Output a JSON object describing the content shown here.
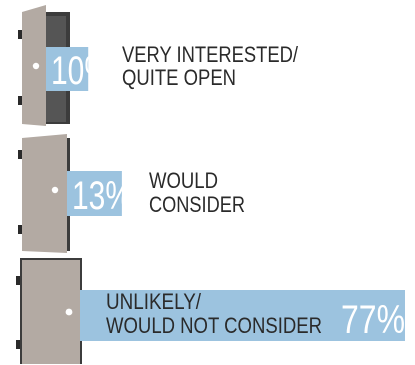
{
  "chart_data": {
    "type": "bar",
    "orientation": "horizontal",
    "categories": [
      [
        "VERY INTERESTED/",
        "QUITE OPEN"
      ],
      [
        "WOULD",
        "CONSIDER"
      ],
      [
        "UNLIKELY/",
        "WOULD NOT CONSIDER"
      ]
    ],
    "values": [
      10,
      13,
      77
    ],
    "value_labels": [
      "10%",
      "13%",
      "77%"
    ],
    "unit": "%",
    "xlim": [
      0,
      77
    ],
    "title": "",
    "xlabel": "",
    "ylabel": "",
    "legend": "none",
    "grid": false,
    "icons": [
      "door-wide-open-icon",
      "door-ajar-icon",
      "door-closed-icon"
    ]
  },
  "colors": {
    "bar": "#9cc3df",
    "bar_text": "#ffffff",
    "label_text": "#2a2a2a",
    "door": "#b3aaa3",
    "door_dark": "#8e857e",
    "frame": "#3c3c3c",
    "frame_inner": "#555555",
    "hinge": "#2a2a2a",
    "knob": "#ffffff"
  }
}
